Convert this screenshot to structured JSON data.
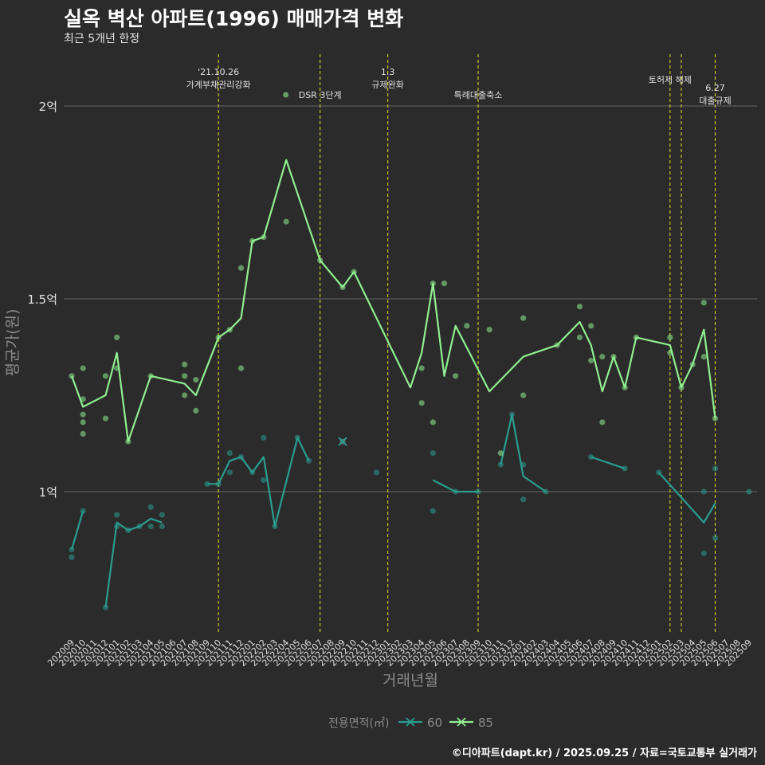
{
  "title": "실옥 벽산 아파트(1996) 매매가격 변화",
  "subtitle": "최근 5개년 한정",
  "caption": "©디아파트(dapt.kr) / 2025.09.25 / 자료=국토교통부 실거래가",
  "colors": {
    "background": "#2b2b2b",
    "grid": "#5a5a5a",
    "event_line": "#d4d42a",
    "series_60": "#2a9d8f",
    "series_85": "#90ee90",
    "text": "#e0e0e0",
    "axis_title": "#8a8a8a"
  },
  "chart_data": {
    "type": "line",
    "xlabel": "거래년월",
    "ylabel": "평균가(원)",
    "legend_title": "전용면적(㎡)",
    "legend_position": "bottom",
    "grid": true,
    "ylim": [
      0.65,
      2.2
    ],
    "y_ticks": [
      {
        "value": 1.0,
        "label": "1억"
      },
      {
        "value": 1.5,
        "label": "1.5억"
      },
      {
        "value": 2.0,
        "label": "2억"
      }
    ],
    "categories": [
      "202009",
      "202010",
      "202011",
      "202012",
      "202101",
      "202102",
      "202103",
      "202104",
      "202105",
      "202106",
      "202107",
      "202108",
      "202109",
      "202110",
      "202111",
      "202112",
      "202201",
      "202202",
      "202203",
      "202204",
      "202205",
      "202206",
      "202207",
      "202208",
      "202209",
      "202210",
      "202211",
      "202212",
      "202301",
      "202302",
      "202303",
      "202304",
      "202305",
      "202306",
      "202307",
      "202308",
      "202309",
      "202310",
      "202311",
      "202312",
      "202401",
      "202402",
      "202403",
      "202404",
      "202405",
      "202406",
      "202407",
      "202408",
      "202409",
      "202410",
      "202411",
      "202412",
      "202501",
      "202502",
      "202503",
      "202504",
      "202505",
      "202506",
      "202507",
      "202508",
      "202509"
    ],
    "events": [
      {
        "x": "202110",
        "label": "'21.10.26\n가계부채관리강화",
        "row": 1
      },
      {
        "x": "202207",
        "label": "DSR 3단계",
        "row": 2
      },
      {
        "x": "202301",
        "label": "1.3\n규제완화",
        "row": 1
      },
      {
        "x": "202309",
        "label": "특례대출축소",
        "row": 2
      },
      {
        "x": "202502",
        "label": "토허제 해제",
        "row": 1
      },
      {
        "x": "202503",
        "label": "",
        "row": 1
      },
      {
        "x": "202506",
        "label": "6.27\n대출규제",
        "row": 3
      }
    ],
    "series": [
      {
        "name": "60",
        "line": [
          [
            0,
            0.85
          ],
          [
            1,
            0.95
          ],
          null,
          [
            3,
            0.7
          ],
          [
            4,
            0.92
          ],
          [
            5,
            0.9
          ],
          [
            6,
            0.91
          ],
          [
            7,
            0.93
          ],
          [
            8,
            0.92
          ],
          null,
          [
            12,
            1.02
          ],
          [
            13,
            1.02
          ],
          [
            14,
            1.08
          ],
          [
            15,
            1.09
          ],
          [
            16,
            1.05
          ],
          [
            17,
            1.09
          ],
          [
            18,
            0.91
          ],
          [
            20,
            1.14
          ],
          [
            21,
            1.08
          ],
          null,
          [
            32,
            1.03
          ],
          [
            34,
            1.0
          ],
          [
            36,
            1.0
          ],
          null,
          [
            38,
            1.07
          ],
          [
            39,
            1.2
          ],
          [
            40,
            1.04
          ],
          [
            42,
            1.0
          ],
          null,
          [
            46,
            1.09
          ],
          [
            49,
            1.06
          ],
          null,
          [
            52,
            1.05
          ],
          [
            56,
            0.92
          ],
          [
            57,
            0.97
          ]
        ],
        "points": [
          [
            0,
            0.85
          ],
          [
            0,
            0.83
          ],
          [
            1,
            0.95
          ],
          [
            3,
            0.7
          ],
          [
            4,
            0.94
          ],
          [
            4,
            0.91
          ],
          [
            5,
            0.9
          ],
          [
            6,
            0.91
          ],
          [
            7,
            0.96
          ],
          [
            7,
            0.91
          ],
          [
            8,
            0.94
          ],
          [
            8,
            0.91
          ],
          [
            12,
            1.02
          ],
          [
            13,
            1.02
          ],
          [
            14,
            1.1
          ],
          [
            14,
            1.05
          ],
          [
            15,
            1.09
          ],
          [
            16,
            1.05
          ],
          [
            17,
            1.14
          ],
          [
            17,
            1.03
          ],
          [
            18,
            0.91
          ],
          [
            20,
            1.14
          ],
          [
            21,
            1.08
          ],
          [
            27,
            1.05
          ],
          [
            32,
            1.1
          ],
          [
            32,
            0.95
          ],
          [
            34,
            1.0
          ],
          [
            36,
            1.0
          ],
          [
            38,
            1.07
          ],
          [
            39,
            1.2
          ],
          [
            40,
            1.07
          ],
          [
            40,
            0.98
          ],
          [
            42,
            1.0
          ],
          [
            46,
            1.09
          ],
          [
            49,
            1.06
          ],
          [
            52,
            1.05
          ],
          [
            56,
            1.0
          ],
          [
            56,
            0.84
          ],
          [
            57,
            1.06
          ],
          [
            57,
            0.88
          ],
          [
            60,
            1.0
          ]
        ]
      },
      {
        "name": "85",
        "line": [
          [
            0,
            1.3
          ],
          [
            1,
            1.22
          ],
          [
            3,
            1.25
          ],
          [
            4,
            1.36
          ],
          [
            5,
            1.13
          ],
          [
            7,
            1.3
          ],
          [
            10,
            1.28
          ],
          [
            11,
            1.25
          ],
          [
            13,
            1.4
          ],
          [
            14,
            1.42
          ],
          [
            15,
            1.45
          ],
          [
            16,
            1.65
          ],
          [
            17,
            1.66
          ],
          [
            19,
            1.86
          ],
          [
            22,
            1.6
          ],
          [
            24,
            1.53
          ],
          [
            25,
            1.57
          ],
          [
            30,
            1.27
          ],
          [
            31,
            1.36
          ],
          [
            32,
            1.54
          ],
          [
            33,
            1.3
          ],
          [
            34,
            1.43
          ],
          [
            37,
            1.26
          ],
          [
            40,
            1.35
          ],
          [
            43,
            1.38
          ],
          [
            45,
            1.44
          ],
          [
            46,
            1.38
          ],
          [
            47,
            1.26
          ],
          [
            48,
            1.35
          ],
          [
            49,
            1.27
          ],
          [
            50,
            1.4
          ],
          [
            53,
            1.38
          ],
          [
            54,
            1.27
          ],
          [
            55,
            1.33
          ],
          [
            56,
            1.42
          ],
          [
            57,
            1.19
          ]
        ],
        "points": [
          [
            0,
            1.3
          ],
          [
            1,
            1.32
          ],
          [
            1,
            1.24
          ],
          [
            1,
            1.2
          ],
          [
            1,
            1.18
          ],
          [
            1,
            1.15
          ],
          [
            3,
            1.3
          ],
          [
            3,
            1.19
          ],
          [
            4,
            1.4
          ],
          [
            4,
            1.32
          ],
          [
            5,
            1.13
          ],
          [
            7,
            1.3
          ],
          [
            10,
            1.33
          ],
          [
            10,
            1.3
          ],
          [
            10,
            1.25
          ],
          [
            11,
            1.29
          ],
          [
            11,
            1.21
          ],
          [
            13,
            1.4
          ],
          [
            14,
            1.42
          ],
          [
            15,
            1.58
          ],
          [
            15,
            1.32
          ],
          [
            16,
            1.65
          ],
          [
            17,
            1.66
          ],
          [
            19,
            1.7
          ],
          [
            22,
            1.6
          ],
          [
            24,
            1.53
          ],
          [
            25,
            1.57
          ],
          [
            31,
            1.32
          ],
          [
            31,
            1.23
          ],
          [
            32,
            1.54
          ],
          [
            32,
            1.18
          ],
          [
            33,
            1.54
          ],
          [
            34,
            1.3
          ],
          [
            35,
            1.43
          ],
          [
            37,
            1.42
          ],
          [
            38,
            1.1
          ],
          [
            40,
            1.45
          ],
          [
            40,
            1.25
          ],
          [
            43,
            1.38
          ],
          [
            45,
            1.48
          ],
          [
            45,
            1.4
          ],
          [
            46,
            1.43
          ],
          [
            46,
            1.34
          ],
          [
            47,
            1.35
          ],
          [
            47,
            1.18
          ],
          [
            48,
            1.35
          ],
          [
            49,
            1.27
          ],
          [
            50,
            1.4
          ],
          [
            53,
            1.4
          ],
          [
            53,
            1.36
          ],
          [
            54,
            1.27
          ],
          [
            55,
            1.33
          ],
          [
            56,
            1.49
          ],
          [
            56,
            1.35
          ],
          [
            57,
            1.19
          ]
        ]
      }
    ],
    "highlight_points": [
      {
        "series": "60",
        "x": 24,
        "y": 1.13,
        "marker": "x"
      }
    ]
  }
}
